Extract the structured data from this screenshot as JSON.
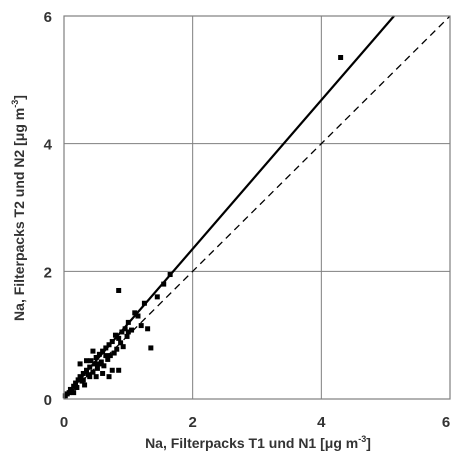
{
  "chart_data": {
    "type": "scatter",
    "xlim": [
      0,
      6
    ],
    "ylim": [
      0,
      6
    ],
    "x_ticks": [
      0,
      2,
      4,
      6
    ],
    "y_ticks": [
      0,
      2,
      4,
      6
    ],
    "grid": true,
    "xlabel": {
      "pre": "Na, Filterpacks T1 und N1 [",
      "mu": "μ",
      "unit": "g m",
      "exp": "-3",
      "post": "]"
    },
    "ylabel": {
      "pre": "Na, Filterpacks T2 und N2 [",
      "mu": "μ",
      "unit": "g m",
      "exp": "-3",
      "post": "]"
    },
    "series": [
      {
        "type": "scatter",
        "points": [
          [
            0.02,
            0.05
          ],
          [
            0.05,
            0.08
          ],
          [
            0.08,
            0.1
          ],
          [
            0.1,
            0.15
          ],
          [
            0.12,
            0.12
          ],
          [
            0.15,
            0.2
          ],
          [
            0.18,
            0.25
          ],
          [
            0.2,
            0.18
          ],
          [
            0.22,
            0.3
          ],
          [
            0.25,
            0.35
          ],
          [
            0.28,
            0.28
          ],
          [
            0.3,
            0.4
          ],
          [
            0.32,
            0.22
          ],
          [
            0.35,
            0.45
          ],
          [
            0.38,
            0.38
          ],
          [
            0.4,
            0.5
          ],
          [
            0.42,
            0.6
          ],
          [
            0.45,
            0.42
          ],
          [
            0.48,
            0.55
          ],
          [
            0.5,
            0.65
          ],
          [
            0.52,
            0.48
          ],
          [
            0.55,
            0.7
          ],
          [
            0.58,
            0.58
          ],
          [
            0.6,
            0.75
          ],
          [
            0.62,
            0.52
          ],
          [
            0.65,
            0.8
          ],
          [
            0.68,
            0.62
          ],
          [
            0.7,
            0.85
          ],
          [
            0.72,
            0.68
          ],
          [
            0.75,
            0.9
          ],
          [
            0.78,
            0.72
          ],
          [
            0.8,
            1.0
          ],
          [
            0.82,
            0.78
          ],
          [
            0.85,
            0.95
          ],
          [
            0.88,
            0.88
          ],
          [
            0.9,
            1.05
          ],
          [
            0.92,
            0.82
          ],
          [
            0.95,
            1.1
          ],
          [
            0.98,
            0.98
          ],
          [
            1.0,
            1.2
          ],
          [
            1.05,
            1.08
          ],
          [
            1.1,
            1.35
          ],
          [
            1.15,
            1.3
          ],
          [
            1.2,
            1.15
          ],
          [
            1.25,
            1.5
          ],
          [
            1.3,
            1.1
          ],
          [
            1.35,
            0.8
          ],
          [
            1.45,
            1.6
          ],
          [
            1.55,
            1.8
          ],
          [
            1.65,
            1.95
          ],
          [
            0.25,
            0.55
          ],
          [
            0.35,
            0.6
          ],
          [
            0.45,
            0.75
          ],
          [
            0.6,
            0.4
          ],
          [
            0.7,
            0.35
          ],
          [
            0.75,
            0.45
          ],
          [
            0.85,
            0.45
          ],
          [
            0.85,
            1.7
          ],
          [
            0.3,
            0.3
          ],
          [
            0.4,
            0.35
          ],
          [
            0.55,
            0.55
          ],
          [
            0.65,
            0.68
          ],
          [
            0.15,
            0.1
          ],
          [
            0.5,
            0.35
          ],
          [
            1.0,
            1.05
          ],
          [
            4.3,
            5.35
          ]
        ]
      },
      {
        "type": "line",
        "style": "solid",
        "points": [
          [
            0,
            0.02
          ],
          [
            5.13,
            6
          ]
        ]
      },
      {
        "type": "line",
        "style": "dashed",
        "points": [
          [
            0,
            0
          ],
          [
            6,
            6
          ]
        ]
      }
    ]
  }
}
